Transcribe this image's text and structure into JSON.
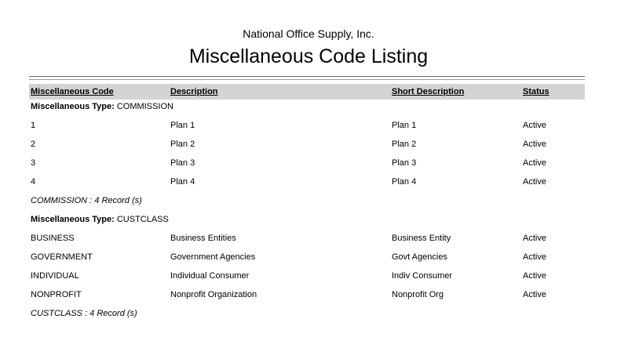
{
  "company": "National Office Supply, Inc.",
  "title": "Miscellaneous Code Listing",
  "columns": [
    "Miscellaneous Code",
    "Description",
    "Short Description",
    "Status"
  ],
  "group_label": "Miscellaneous Type:",
  "groups": [
    {
      "type": "COMMISSION",
      "rows": [
        [
          "1",
          "Plan 1",
          "Plan 1",
          "Active"
        ],
        [
          "2",
          "Plan 2",
          "Plan 2",
          "Active"
        ],
        [
          "3",
          "Plan 3",
          "Plan 3",
          "Active"
        ],
        [
          "4",
          "Plan 4",
          "Plan 4",
          "Active"
        ]
      ],
      "footer": "COMMISSION : 4 Record (s)"
    },
    {
      "type": "CUSTCLASS",
      "rows": [
        [
          "BUSINESS",
          "Business Entities",
          "Business Entity",
          "Active"
        ],
        [
          "GOVERNMENT",
          "Government Agencies",
          "Govt Agencies",
          "Active"
        ],
        [
          "INDIVIDUAL",
          "Individual Consumer",
          "Indiv Consumer",
          "Active"
        ],
        [
          "NONPROFIT",
          "Nonprofit Organization",
          "Nonprofit Org",
          "Active"
        ]
      ],
      "footer": "CUSTCLASS : 4 Record (s)"
    }
  ]
}
